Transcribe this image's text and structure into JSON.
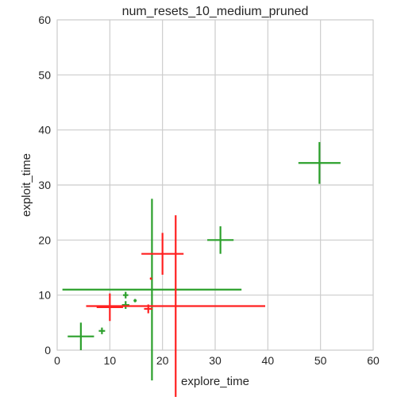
{
  "chart_data": {
    "type": "scatter",
    "title": "num_resets_10_medium_pruned",
    "xlabel": "explore_time",
    "ylabel": "exploit_time",
    "xlim": [
      0,
      60
    ],
    "ylim": [
      0,
      60
    ],
    "xticks": [
      "0",
      "10",
      "20",
      "30",
      "40",
      "50",
      "60"
    ],
    "yticks": [
      "0",
      "10",
      "20",
      "30",
      "40",
      "50",
      "60"
    ],
    "grid": true,
    "colors": {
      "green": "#2ca02c",
      "red": "#ff2020",
      "grid": "#cccccc"
    },
    "series": [
      {
        "color": "green",
        "points": [
          {
            "x": 49.8,
            "y": 34.0,
            "xerr": 4.0,
            "yerr": 3.8
          },
          {
            "x": 31.0,
            "y": 20.0,
            "xerr": 2.5,
            "yerr": 2.5
          },
          {
            "x": 18.0,
            "y": 11.0,
            "xerr": 17.0,
            "yerr": 16.5
          },
          {
            "x": 13.0,
            "y": 10.0,
            "xerr": 0.5,
            "yerr": 0.6
          },
          {
            "x": 13.0,
            "y": 8.2,
            "xerr": 0.7,
            "yerr": 0.7
          },
          {
            "x": 14.8,
            "y": 9.0,
            "xerr": 0.3,
            "yerr": 0.3
          },
          {
            "x": 8.5,
            "y": 3.5,
            "xerr": 0.6,
            "yerr": 0.6
          },
          {
            "x": 4.5,
            "y": 2.5,
            "xerr": 2.5,
            "yerr": 2.5
          }
        ]
      },
      {
        "color": "red",
        "points": [
          {
            "x": 20.0,
            "y": 17.5,
            "xerr": 4.0,
            "yerr": 3.8
          },
          {
            "x": 22.5,
            "y": 8.0,
            "xerr": 17.0,
            "yerr": 16.5
          },
          {
            "x": 17.8,
            "y": 13.0,
            "xerr": 0.2,
            "yerr": 0.2
          },
          {
            "x": 10.0,
            "y": 7.8,
            "xerr": 2.5,
            "yerr": 2.5
          },
          {
            "x": 17.3,
            "y": 7.5,
            "xerr": 0.8,
            "yerr": 0.8
          }
        ]
      }
    ]
  }
}
